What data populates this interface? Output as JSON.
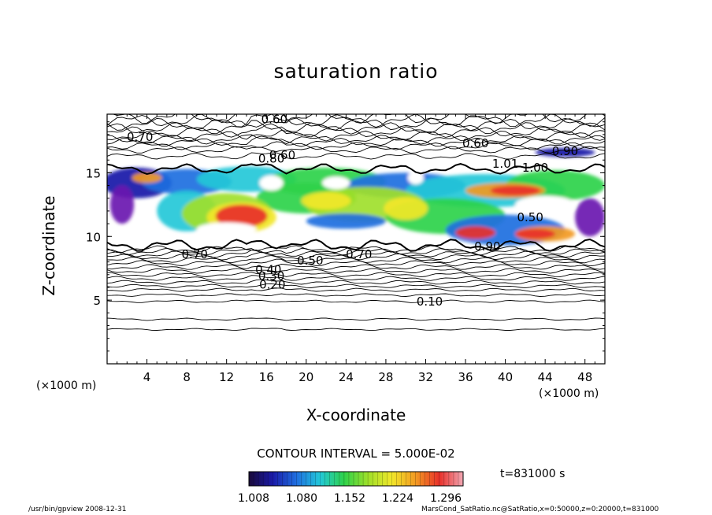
{
  "chart_data": {
    "type": "contour",
    "title": "saturation ratio",
    "xlabel": "X-coordinate",
    "ylabel": "Z-coordinate",
    "x_unit": "(×1000 m)",
    "xlim": [
      0,
      50
    ],
    "ylim": [
      0,
      19.6
    ],
    "x_ticks": [
      4,
      8,
      12,
      16,
      20,
      24,
      28,
      32,
      36,
      40,
      44,
      48
    ],
    "y_ticks": [
      5,
      10,
      15
    ],
    "contour_interval_text": "CONTOUR INTERVAL = 5.000E-02",
    "contour_labels": [
      {
        "text": "0.60",
        "x": 16.8,
        "z": 19.2
      },
      {
        "text": "0.70",
        "x": 3.3,
        "z": 17.8
      },
      {
        "text": "0.60",
        "x": 37.0,
        "z": 17.3
      },
      {
        "text": "0.90",
        "x": 46.0,
        "z": 16.7
      },
      {
        "text": "0.80",
        "x": 16.5,
        "z": 16.1
      },
      {
        "text": "0.60",
        "x": 17.6,
        "z": 16.4
      },
      {
        "text": "1.01",
        "x": 40.0,
        "z": 15.7
      },
      {
        "text": "1.00",
        "x": 43.0,
        "z": 15.4
      },
      {
        "text": "0.50",
        "x": 42.5,
        "z": 11.5
      },
      {
        "text": "0.70",
        "x": 8.8,
        "z": 8.6
      },
      {
        "text": "0.50",
        "x": 20.4,
        "z": 8.1
      },
      {
        "text": "0.70",
        "x": 25.3,
        "z": 8.6
      },
      {
        "text": "0.90",
        "x": 38.2,
        "z": 9.2
      },
      {
        "text": "0.40",
        "x": 16.2,
        "z": 7.4
      },
      {
        "text": "0.30",
        "x": 16.5,
        "z": 6.9
      },
      {
        "text": "0.20",
        "x": 16.6,
        "z": 6.2
      },
      {
        "text": "0.10",
        "x": 32.4,
        "z": 4.9
      }
    ],
    "colorbar": {
      "tick_labels": [
        "1.008",
        "1.080",
        "1.152",
        "1.224",
        "1.296"
      ],
      "colors": [
        "#1a0a3a",
        "#1a1aa8",
        "#1f6fe0",
        "#22c8d8",
        "#2ed24a",
        "#9fe02a",
        "#f2e72a",
        "#f29a22",
        "#e8302a",
        "#f2a8b4"
      ]
    },
    "time_label": "t=831000 s"
  },
  "footer": {
    "left": "/usr/bin/gpview   2008-12-31",
    "right": "MarsCond_SatRatio.nc@SatRatio,x=0:50000,z=0:20000,t=831000"
  }
}
